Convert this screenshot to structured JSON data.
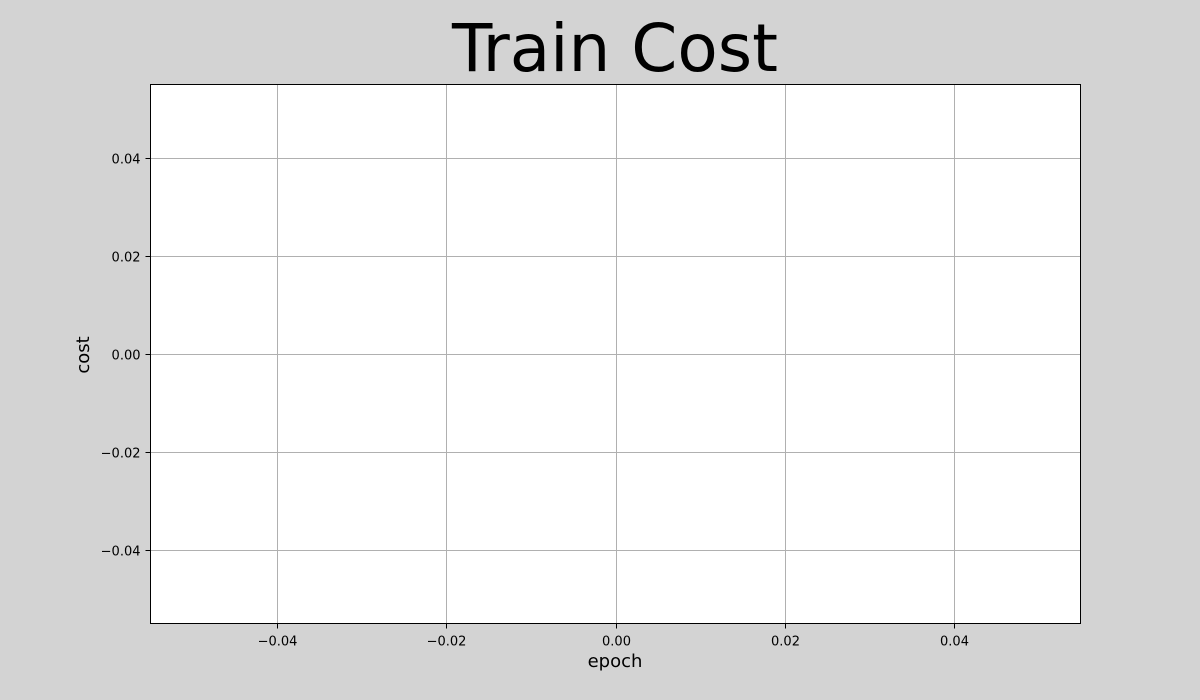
{
  "chart_data": {
    "type": "line",
    "title": "Train Cost",
    "xlabel": "epoch",
    "ylabel": "cost",
    "xlim": [
      -0.055,
      0.055
    ],
    "ylim": [
      -0.055,
      0.055
    ],
    "xticks": [
      -0.04,
      -0.02,
      0.0,
      0.02,
      0.04
    ],
    "yticks": [
      -0.04,
      -0.02,
      0.0,
      0.02,
      0.04
    ],
    "xtick_labels": [
      "−0.04",
      "−0.02",
      "0.00",
      "0.02",
      "0.04"
    ],
    "ytick_labels": [
      "−0.04",
      "−0.02",
      "0.00",
      "0.02",
      "0.04"
    ],
    "grid": true,
    "series": []
  },
  "colors": {
    "figure_background": "#d3d3d3",
    "plot_background": "#ffffff",
    "grid": "#b0b0b0",
    "axis": "#000000"
  }
}
